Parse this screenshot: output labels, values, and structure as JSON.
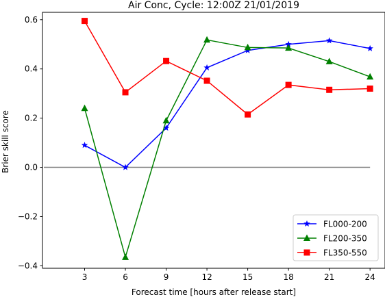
{
  "chart_data": {
    "type": "line",
    "title": "Air Conc, Cycle: 12:00Z 21/01/2019",
    "xlabel": "Forecast time [hours after release start]",
    "ylabel": "Brier skill score",
    "x_ticks": [
      3,
      6,
      9,
      12,
      15,
      18,
      21,
      24
    ],
    "y_ticks": [
      -0.4,
      -0.2,
      0.0,
      0.2,
      0.4,
      0.6
    ],
    "y_tick_labels": [
      "−0.4",
      "−0.2",
      "0.0",
      "0.2",
      "0.4",
      "0.6"
    ],
    "xlim": [
      -0.1,
      25.1
    ],
    "ylim": [
      -0.41,
      0.63
    ],
    "grid": false,
    "legend_position": "lower-right",
    "reference_line": {
      "y": 0.0,
      "x_from": 0,
      "x_to": 24,
      "color": "#808080"
    },
    "series": [
      {
        "name": "FL000-200",
        "color": "#0000ff",
        "marker": "star",
        "x": [
          3,
          6,
          9,
          12,
          15,
          18,
          21,
          24
        ],
        "values": [
          0.09,
          0.0,
          0.16,
          0.405,
          0.475,
          0.5,
          0.515,
          0.483
        ]
      },
      {
        "name": "FL200-350",
        "color": "#008000",
        "marker": "triangle",
        "x": [
          3,
          6,
          9,
          12,
          15,
          18,
          21,
          24
        ],
        "values": [
          0.24,
          -0.365,
          0.19,
          0.518,
          0.487,
          0.485,
          0.43,
          0.368
        ]
      },
      {
        "name": "FL350-550",
        "color": "#ff0000",
        "marker": "square",
        "x": [
          3,
          6,
          9,
          12,
          15,
          18,
          21,
          24
        ],
        "values": [
          0.595,
          0.305,
          0.432,
          0.352,
          0.215,
          0.335,
          0.315,
          0.32
        ]
      }
    ]
  }
}
